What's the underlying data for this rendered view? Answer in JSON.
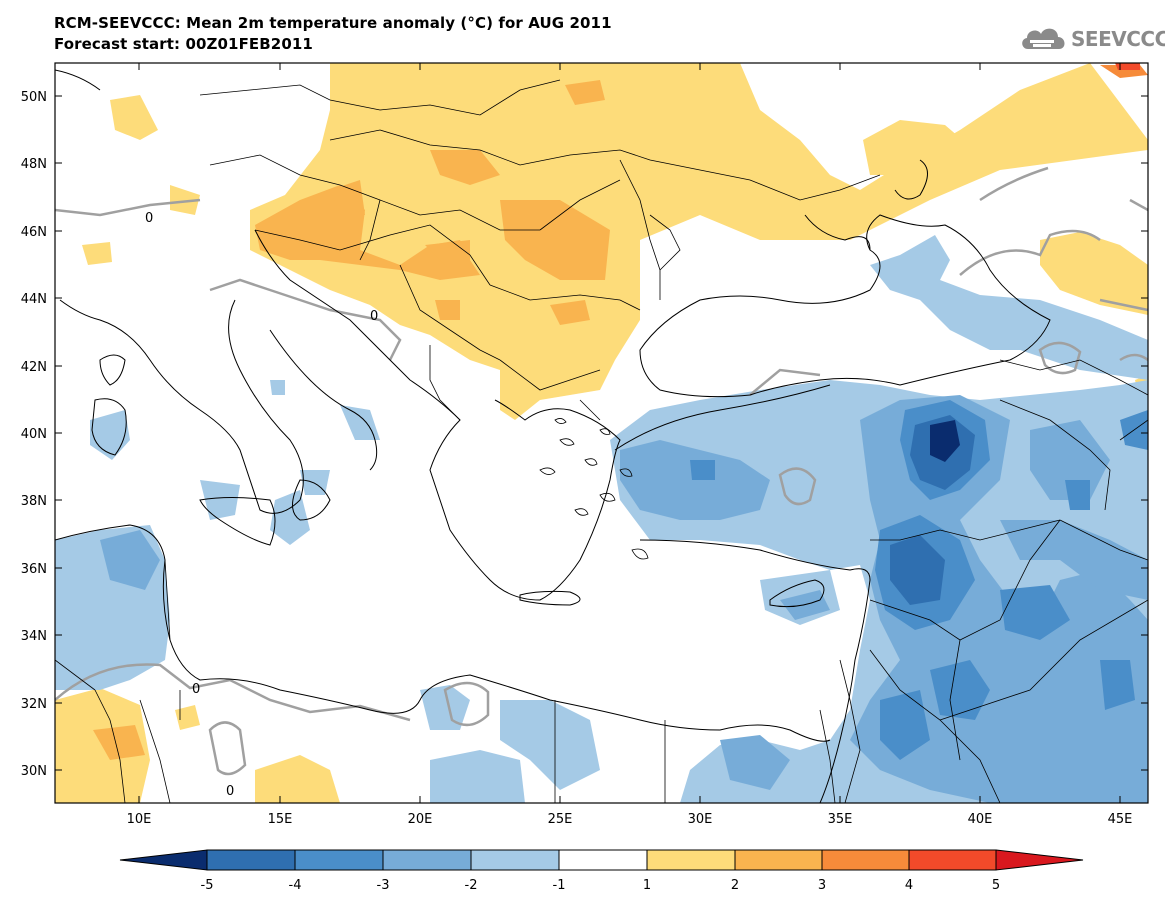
{
  "title": {
    "line1": "RCM-SEEVCCC: Mean 2m temperature anomaly (°C) for AUG 2011",
    "line2": "Forecast start: 00Z01FEB2011"
  },
  "logo": {
    "text": "SEEVCCC",
    "icon": "cloud-icon"
  },
  "axes": {
    "lat_labels": [
      "50N",
      "48N",
      "46N",
      "44N",
      "42N",
      "40N",
      "38N",
      "36N",
      "34N",
      "32N",
      "30N"
    ],
    "lon_labels": [
      "10E",
      "15E",
      "20E",
      "25E",
      "30E",
      "35E",
      "40E",
      "45E"
    ]
  },
  "contour_labels": [
    "0",
    "0",
    "0",
    "0"
  ],
  "colorbar": {
    "labels": [
      "-5",
      "-4",
      "-3",
      "-2",
      "-1",
      "1",
      "2",
      "3",
      "4",
      "5"
    ],
    "colors": [
      "#0a2c6e",
      "#2f6fb0",
      "#4a8ec9",
      "#77acd8",
      "#a5cae6",
      "#ffffff",
      "#fddc7a",
      "#f9b44f",
      "#f68b3a",
      "#f24a2a",
      "#d9181e"
    ]
  },
  "palette": {
    "neg1": "#a5cae6",
    "neg2": "#77acd8",
    "neg3": "#4a8ec9",
    "neg4": "#2f6fb0",
    "neg5": "#0a2c6e",
    "pos1": "#fddc7a",
    "pos2": "#f9b44f",
    "pos3": "#f68b3a",
    "pos4": "#f24a2a",
    "border": "#000000",
    "contour": "#a0a0a0"
  }
}
